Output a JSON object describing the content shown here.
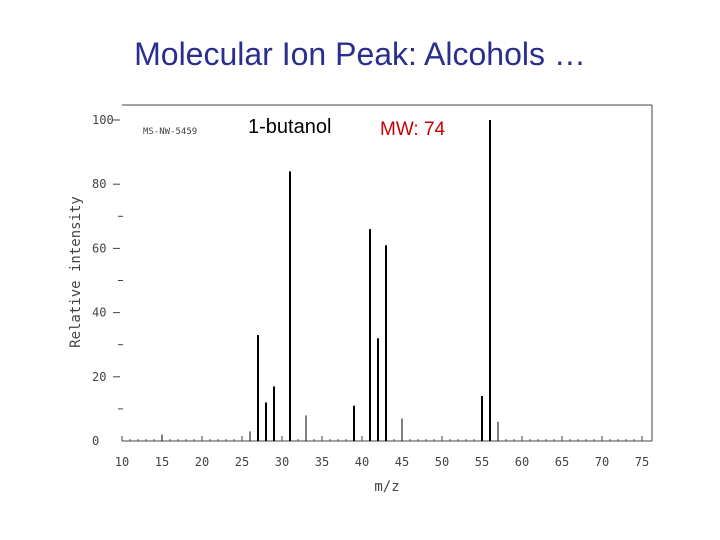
{
  "slide": {
    "title": "Molecular Ion Peak: Alcohols …",
    "compound_label": "1-butanol",
    "mw_label": "MW: 74"
  },
  "colors": {
    "title": "#2a2f8f",
    "mw_label": "#cc0000",
    "bars": "#000000",
    "axis": "#444444"
  },
  "chart_data": {
    "type": "bar",
    "subtype": "mass-spectrum",
    "spectrum_code": "MS-NW-5459",
    "xlabel": "m/z",
    "ylabel": "Relative intensity",
    "xlim": [
      10,
      75
    ],
    "ylim": [
      0,
      100
    ],
    "x_ticks": [
      10,
      15,
      20,
      25,
      30,
      35,
      40,
      45,
      50,
      55,
      60,
      65,
      70,
      75
    ],
    "y_ticks": [
      0,
      20,
      40,
      60,
      80,
      100
    ],
    "y_minor_ticks": [
      10,
      30,
      50,
      70
    ],
    "grid": false,
    "peaks": [
      {
        "mz": 15,
        "intensity": 2
      },
      {
        "mz": 26,
        "intensity": 3
      },
      {
        "mz": 27,
        "intensity": 33
      },
      {
        "mz": 28,
        "intensity": 12
      },
      {
        "mz": 29,
        "intensity": 17
      },
      {
        "mz": 31,
        "intensity": 84
      },
      {
        "mz": 33,
        "intensity": 8
      },
      {
        "mz": 39,
        "intensity": 11
      },
      {
        "mz": 41,
        "intensity": 66
      },
      {
        "mz": 42,
        "intensity": 32
      },
      {
        "mz": 43,
        "intensity": 61
      },
      {
        "mz": 45,
        "intensity": 7
      },
      {
        "mz": 55,
        "intensity": 14
      },
      {
        "mz": 56,
        "intensity": 100
      },
      {
        "mz": 57,
        "intensity": 6
      }
    ]
  }
}
